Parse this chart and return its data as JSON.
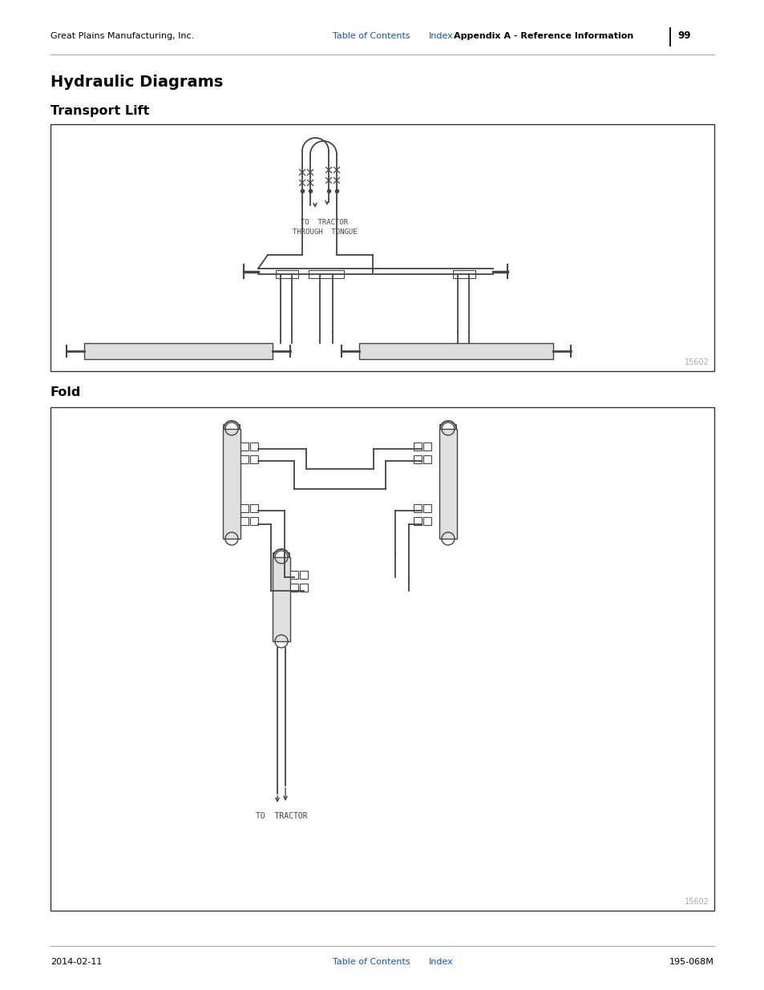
{
  "page_bg": "#ffffff",
  "header_left": "Great Plains Manufacturing, Inc.",
  "header_center_link1": "Table of Contents",
  "header_center_link2": "Index",
  "header_right_bold": "Appendix A - Reference Information",
  "header_page": "99",
  "footer_left": "2014-02-11",
  "footer_center_link1": "Table of Contents",
  "footer_center_link2": "Index",
  "footer_right": "195-068M",
  "title_main": "Hydraulic Diagrams",
  "title_section1": "Transport Lift",
  "title_section2": "Fold",
  "diagram_label": "15602",
  "link_color": "#1155CC",
  "text_color": "#000000",
  "pipe_color": "#444444",
  "diagram_border": "#333333",
  "figw": 9.54,
  "figh": 12.35,
  "dpi": 100
}
